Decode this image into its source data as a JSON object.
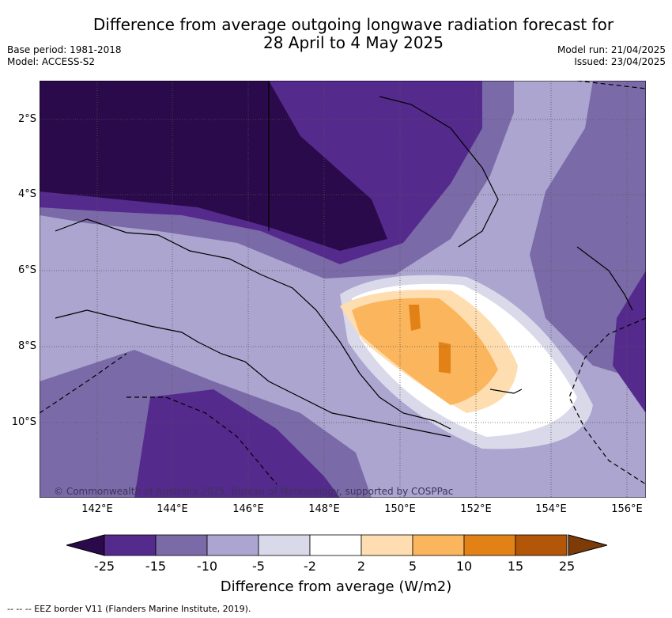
{
  "title_line1": "Difference from average outgoing longwave radiation forecast for",
  "title_line2": "28 April to 4 May 2025",
  "base_period": "Base period: 1981-2018",
  "model": "Model: ACCESS-S2",
  "model_run": "Model run: 21/04/2025",
  "issued": "Issued: 23/04/2025",
  "copyright": "© Commonwealth of Australia 2025, Bureau of Meteorology, supported by COSPPac",
  "lon_ticks": [
    "142°E",
    "144°E",
    "146°E",
    "148°E",
    "150°E",
    "152°E",
    "154°E",
    "156°E"
  ],
  "lat_ticks": [
    "2°S",
    "4°S",
    "6°S",
    "8°S",
    "10°S"
  ],
  "colorbar": {
    "title": "Difference from average (W/m2)",
    "tick_labels": [
      "-25",
      "-15",
      "-10",
      "-5",
      "-2",
      "2",
      "5",
      "10",
      "15",
      "25"
    ],
    "colors": {
      "below_min": "#2a0a4a",
      "bins": [
        "#552a8d",
        "#7b6aa8",
        "#aba5cf",
        "#d9d9ea",
        "#ffffff",
        "#fedeb1",
        "#fbb55d",
        "#e28216",
        "#b45608"
      ],
      "above_max": "#7c3b07"
    }
  },
  "footer": "--  --  -- EEZ border V11 (Flanders Marine Institute, 2019)."
}
